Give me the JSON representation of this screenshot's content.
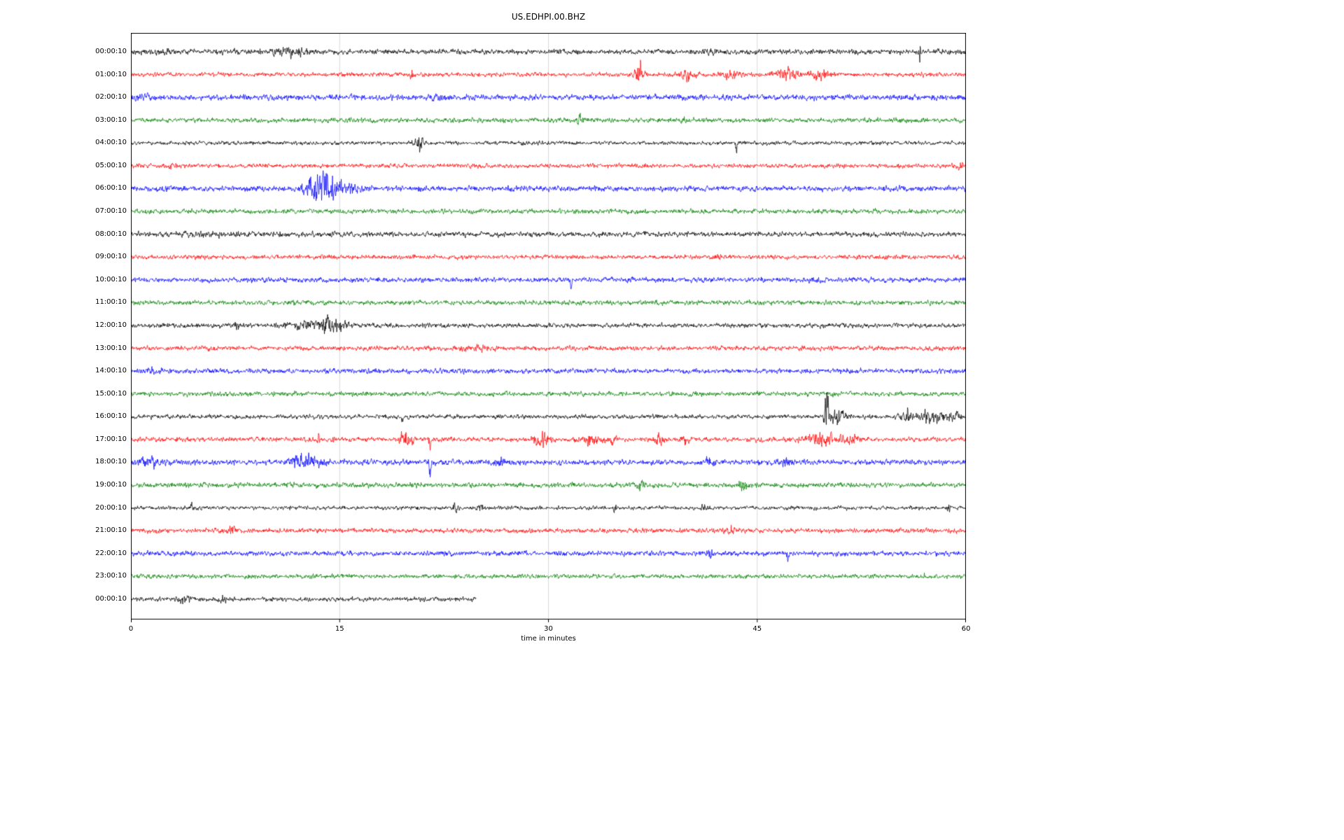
{
  "chart_data": {
    "type": "line",
    "title": "US.EDHPI.00.BHZ",
    "xlabel": "time in minutes",
    "xlim": [
      0,
      60
    ],
    "x_ticks": [
      0,
      15,
      30,
      45,
      60
    ],
    "grid_minutes": [
      15,
      30,
      45
    ],
    "legend": "none",
    "description": "Helicorder day plot: 25 one-hour seismogram traces, colors cycling black/red/blue/green. Each row lists start time, trace color, end minute, baseline noise amplitude (px) and notable seismic events (t=minutes, a=relative amplitude, w=width minutes, d=spike direction).",
    "colors": {
      "black": "#000000",
      "red": "#ff0000",
      "blue": "#0000ff",
      "green": "#008000"
    },
    "rows": [
      {
        "label": "00:00:10",
        "color": "#000000",
        "end": 60,
        "base": 2.9,
        "events": [
          {
            "t": 2.3,
            "a": 0.8,
            "w": 0.3
          },
          {
            "t": 11.4,
            "a": 1.2,
            "w": 0.9
          },
          {
            "t": 41.5,
            "a": 0.6,
            "w": 0.4
          },
          {
            "t": 56.7,
            "a": 3.5,
            "w": 0.07
          }
        ]
      },
      {
        "label": "01:00:10",
        "color": "#ff0000",
        "end": 60,
        "base": 2.4,
        "events": [
          {
            "t": 20.2,
            "a": 1.4,
            "w": 0.1
          },
          {
            "t": 36.5,
            "a": 5.5,
            "w": 0.22
          },
          {
            "t": 40.0,
            "a": 2.2,
            "w": 0.3
          },
          {
            "t": 43.2,
            "a": 2.0,
            "w": 0.45
          },
          {
            "t": 47.2,
            "a": 2.4,
            "w": 0.7
          },
          {
            "t": 49.6,
            "a": 2.4,
            "w": 0.5
          }
        ]
      },
      {
        "label": "02:00:10",
        "color": "#0000ff",
        "end": 60,
        "base": 3.1,
        "events": [
          {
            "t": 1.0,
            "a": 0.8,
            "w": 0.6
          },
          {
            "t": 22.0,
            "a": 0.6,
            "w": 0.5
          }
        ]
      },
      {
        "label": "03:00:10",
        "color": "#008000",
        "end": 60,
        "base": 2.6,
        "events": [
          {
            "t": 32.3,
            "a": 1.8,
            "w": 0.2
          },
          {
            "t": 39.7,
            "a": 1.1,
            "w": 0.2
          },
          {
            "t": 55.2,
            "a": 0.7,
            "w": 0.3
          }
        ]
      },
      {
        "label": "04:00:10",
        "color": "#000000",
        "end": 60,
        "base": 2.2,
        "events": [
          {
            "t": 20.8,
            "a": 3.5,
            "w": 0.28
          },
          {
            "t": 43.5,
            "a": 2.6,
            "w": 0.05,
            "d": -1
          }
        ]
      },
      {
        "label": "05:00:10",
        "color": "#ff0000",
        "end": 60,
        "base": 2.4,
        "events": [
          {
            "t": 3.0,
            "a": 0.8,
            "w": 0.3
          },
          {
            "t": 59.6,
            "a": 1.4,
            "w": 0.12
          }
        ]
      },
      {
        "label": "06:00:10",
        "color": "#0000ff",
        "end": 60,
        "base": 3.0,
        "events": [
          {
            "t": 12.9,
            "a": 3.5,
            "w": 0.35
          },
          {
            "t": 13.6,
            "a": 5.0,
            "w": 0.3
          },
          {
            "t": 14.4,
            "a": 3.0,
            "w": 0.5
          },
          {
            "t": 15.6,
            "a": 1.2,
            "w": 1.0
          }
        ]
      },
      {
        "label": "07:00:10",
        "color": "#008000",
        "end": 60,
        "base": 2.6,
        "events": []
      },
      {
        "label": "08:00:10",
        "color": "#000000",
        "end": 60,
        "base": 2.8,
        "events": [
          {
            "t": 6.0,
            "a": 0.4,
            "w": 2.0
          }
        ]
      },
      {
        "label": "09:00:10",
        "color": "#ff0000",
        "end": 60,
        "base": 2.4,
        "events": [
          {
            "t": 42.0,
            "a": 0.5,
            "w": 0.5
          }
        ]
      },
      {
        "label": "10:00:10",
        "color": "#0000ff",
        "end": 60,
        "base": 2.8,
        "events": [
          {
            "t": 31.6,
            "a": 3.4,
            "w": 0.05,
            "d": -1
          }
        ]
      },
      {
        "label": "11:00:10",
        "color": "#008000",
        "end": 60,
        "base": 2.6,
        "events": []
      },
      {
        "label": "12:00:10",
        "color": "#000000",
        "end": 60,
        "base": 2.6,
        "events": [
          {
            "t": 7.6,
            "a": 0.9,
            "w": 0.3
          },
          {
            "t": 12.4,
            "a": 1.4,
            "w": 0.7
          },
          {
            "t": 13.9,
            "a": 2.8,
            "w": 0.5
          },
          {
            "t": 15.0,
            "a": 2.2,
            "w": 0.4
          }
        ]
      },
      {
        "label": "13:00:10",
        "color": "#ff0000",
        "end": 60,
        "base": 2.6,
        "events": [
          {
            "t": 25.0,
            "a": 0.4,
            "w": 1.0
          }
        ]
      },
      {
        "label": "14:00:10",
        "color": "#0000ff",
        "end": 60,
        "base": 2.8,
        "events": [
          {
            "t": 1.5,
            "a": 0.7,
            "w": 0.5
          }
        ]
      },
      {
        "label": "15:00:10",
        "color": "#008000",
        "end": 60,
        "base": 2.6,
        "events": []
      },
      {
        "label": "16:00:10",
        "color": "#000000",
        "end": 60,
        "base": 2.4,
        "events": [
          {
            "t": 19.5,
            "a": 2.2,
            "w": 0.05,
            "d": -1
          },
          {
            "t": 50.0,
            "a": 9.0,
            "w": 0.1,
            "d": 1
          },
          {
            "t": 50.6,
            "a": 3.5,
            "w": 0.45
          },
          {
            "t": 55.8,
            "a": 2.8,
            "w": 0.4
          },
          {
            "t": 57.6,
            "a": 2.8,
            "w": 0.6
          },
          {
            "t": 59.2,
            "a": 2.0,
            "w": 0.3
          }
        ]
      },
      {
        "label": "17:00:10",
        "color": "#ff0000",
        "end": 60,
        "base": 2.6,
        "events": [
          {
            "t": 13.5,
            "a": 2.8,
            "w": 0.07
          },
          {
            "t": 19.8,
            "a": 3.5,
            "w": 0.3
          },
          {
            "t": 21.5,
            "a": 4.5,
            "w": 0.05,
            "d": -1
          },
          {
            "t": 29.5,
            "a": 3.2,
            "w": 0.4
          },
          {
            "t": 32.8,
            "a": 2.2,
            "w": 0.4
          },
          {
            "t": 34.5,
            "a": 1.8,
            "w": 0.3
          },
          {
            "t": 38.0,
            "a": 1.8,
            "w": 0.3
          },
          {
            "t": 39.8,
            "a": 2.2,
            "w": 0.2
          },
          {
            "t": 49.6,
            "a": 2.6,
            "w": 0.8
          },
          {
            "t": 51.8,
            "a": 2.2,
            "w": 0.4
          }
        ]
      },
      {
        "label": "18:00:10",
        "color": "#0000ff",
        "end": 60,
        "base": 3.0,
        "events": [
          {
            "t": 1.5,
            "a": 1.8,
            "w": 0.6
          },
          {
            "t": 12.3,
            "a": 2.6,
            "w": 0.5
          },
          {
            "t": 13.4,
            "a": 1.8,
            "w": 0.4
          },
          {
            "t": 21.5,
            "a": 4.0,
            "w": 0.05,
            "d": -1
          },
          {
            "t": 26.5,
            "a": 1.8,
            "w": 0.3
          },
          {
            "t": 41.6,
            "a": 1.8,
            "w": 0.2
          },
          {
            "t": 47.0,
            "a": 1.2,
            "w": 0.3
          }
        ]
      },
      {
        "label": "19:00:10",
        "color": "#008000",
        "end": 60,
        "base": 2.8,
        "events": [
          {
            "t": 36.6,
            "a": 1.8,
            "w": 0.15
          },
          {
            "t": 44.0,
            "a": 2.0,
            "w": 0.2
          }
        ]
      },
      {
        "label": "20:00:10",
        "color": "#000000",
        "end": 60,
        "base": 2.2,
        "events": [
          {
            "t": 4.3,
            "a": 2.4,
            "w": 0.08
          },
          {
            "t": 23.3,
            "a": 1.8,
            "w": 0.15
          },
          {
            "t": 25.2,
            "a": 1.4,
            "w": 0.2
          },
          {
            "t": 34.8,
            "a": 3.2,
            "w": 0.05,
            "d": -1
          },
          {
            "t": 41.3,
            "a": 1.6,
            "w": 0.2
          },
          {
            "t": 58.8,
            "a": 2.2,
            "w": 0.12
          }
        ]
      },
      {
        "label": "21:00:10",
        "color": "#ff0000",
        "end": 60,
        "base": 2.6,
        "events": [
          {
            "t": 7.2,
            "a": 1.6,
            "w": 0.3
          },
          {
            "t": 43.0,
            "a": 1.3,
            "w": 0.3
          }
        ]
      },
      {
        "label": "22:00:10",
        "color": "#0000ff",
        "end": 60,
        "base": 2.8,
        "events": [
          {
            "t": 41.6,
            "a": 1.3,
            "w": 0.2
          },
          {
            "t": 47.2,
            "a": 2.8,
            "w": 0.07,
            "d": -1
          }
        ]
      },
      {
        "label": "23:00:10",
        "color": "#008000",
        "end": 60,
        "base": 2.4,
        "events": [
          {
            "t": 57.0,
            "a": 1.6,
            "w": 0.1
          }
        ]
      },
      {
        "label": "00:00:10",
        "color": "#000000",
        "end": 24.8,
        "base": 2.4,
        "events": [
          {
            "t": 4.0,
            "a": 1.8,
            "w": 0.35
          },
          {
            "t": 6.6,
            "a": 1.1,
            "w": 0.3
          }
        ]
      }
    ]
  }
}
